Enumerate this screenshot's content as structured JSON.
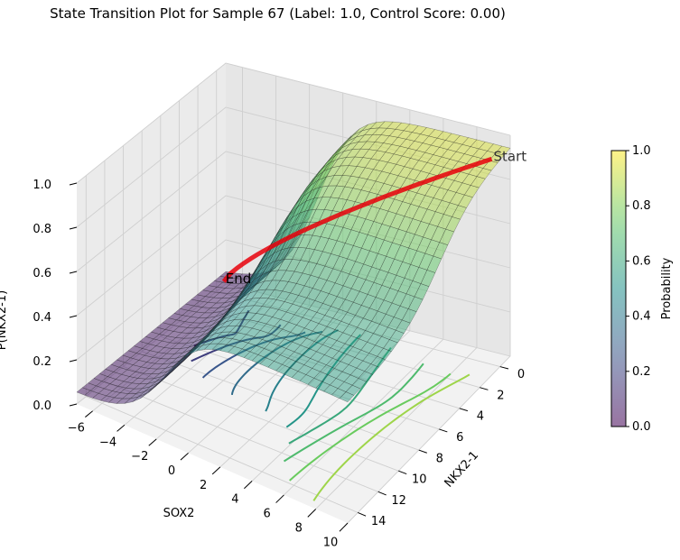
{
  "chart_data": {
    "type": "surface3d",
    "title": "State Transition Plot for Sample 67 (Label: 1.0, Control Score: 0.00)",
    "xlabel": "SOX2",
    "ylabel": "NKX2-1",
    "zlabel": "P(NKX2-1)",
    "xlim": [
      -7,
      10
    ],
    "ylim": [
      -1,
      15
    ],
    "zlim": [
      0,
      1
    ],
    "x_ticks": [
      "−6",
      "−4",
      "−2",
      "0",
      "2",
      "4",
      "6",
      "8",
      "10"
    ],
    "x_tick_values": [
      -6,
      -4,
      -2,
      0,
      2,
      4,
      6,
      8,
      10
    ],
    "y_ticks": [
      "0",
      "2",
      "4",
      "6",
      "8",
      "10",
      "12",
      "14"
    ],
    "y_tick_values": [
      0,
      2,
      4,
      6,
      8,
      10,
      12,
      14
    ],
    "z_ticks": [
      "0.0",
      "0.2",
      "0.4",
      "0.6",
      "0.8",
      "1.0"
    ],
    "z_tick_values": [
      0,
      0.2,
      0.4,
      0.6,
      0.8,
      1.0
    ],
    "surface": {
      "description": "logistic probability surface rising from End region to Start plateau",
      "colormap": "viridis",
      "alpha": 0.5
    },
    "trajectory": {
      "color": "#e8000b",
      "start": {
        "label": "Start",
        "x": 9.5,
        "y": 0,
        "z": 0.93
      },
      "end": {
        "label": "End",
        "x": -6,
        "y": 1,
        "z": 0.1
      }
    },
    "colorbar": {
      "label": "Probability",
      "ticks": [
        "0.0",
        "0.2",
        "0.4",
        "0.6",
        "0.8",
        "1.0"
      ],
      "range": [
        0,
        1
      ]
    },
    "floor_curves_colormap": "viridis",
    "floor_curve_count": 10
  }
}
